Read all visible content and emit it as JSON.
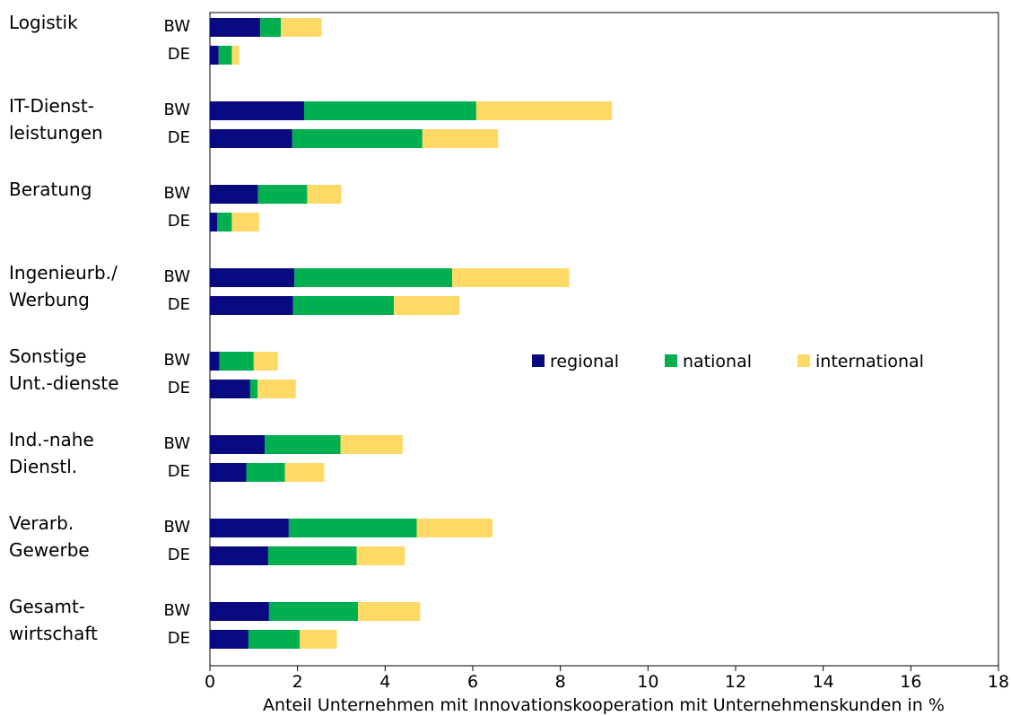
{
  "chart_data": {
    "type": "bar",
    "orientation": "horizontal",
    "stacked": true,
    "title": "",
    "xlabel": "Anteil Unternehmen mit Innovationskooperation mit Unternehmenskunden in %",
    "ylabel": "",
    "xlim": [
      0,
      18
    ],
    "xticks": [
      0,
      2,
      4,
      6,
      8,
      10,
      12,
      14,
      16,
      18
    ],
    "grid": false,
    "legend_position": "middle-right",
    "groups": [
      {
        "label_lines": [
          "Logistik"
        ],
        "rows": [
          "BW",
          "DE"
        ]
      },
      {
        "label_lines": [
          "IT-Dienst-",
          "leistungen"
        ],
        "rows": [
          "BW",
          "DE"
        ]
      },
      {
        "label_lines": [
          "Beratung"
        ],
        "rows": [
          "BW",
          "DE"
        ]
      },
      {
        "label_lines": [
          "Ingenieurb./",
          "Werbung"
        ],
        "rows": [
          "BW",
          "DE"
        ]
      },
      {
        "label_lines": [
          "Sonstige",
          "Unt.-dienste"
        ],
        "rows": [
          "BW",
          "DE"
        ]
      },
      {
        "label_lines": [
          "Ind.-nahe",
          "Dienstl."
        ],
        "rows": [
          "BW",
          "DE"
        ]
      },
      {
        "label_lines": [
          "Verarb.",
          "Gewerbe"
        ],
        "rows": [
          "BW",
          "DE"
        ]
      },
      {
        "label_lines": [
          "Gesamt-",
          "wirtschaft"
        ],
        "rows": [
          "BW",
          "DE"
        ]
      }
    ],
    "series": [
      {
        "name": "regional",
        "color": "#0a0a80",
        "values": [
          1.15,
          0.2,
          2.15,
          1.88,
          1.1,
          0.17,
          1.93,
          1.9,
          0.22,
          0.92,
          1.25,
          0.83,
          1.8,
          1.33,
          1.35,
          0.88
        ]
      },
      {
        "name": "national",
        "color": "#00b050",
        "values": [
          0.47,
          0.3,
          3.93,
          2.97,
          1.12,
          0.33,
          3.6,
          2.3,
          0.78,
          0.17,
          1.73,
          0.88,
          2.92,
          2.02,
          2.03,
          1.17
        ]
      },
      {
        "name": "international",
        "color": "#ffd966",
        "values": [
          0.93,
          0.17,
          3.1,
          1.73,
          0.78,
          0.62,
          2.67,
          1.5,
          0.55,
          0.87,
          1.42,
          0.9,
          1.73,
          1.1,
          1.42,
          0.85
        ]
      }
    ]
  }
}
